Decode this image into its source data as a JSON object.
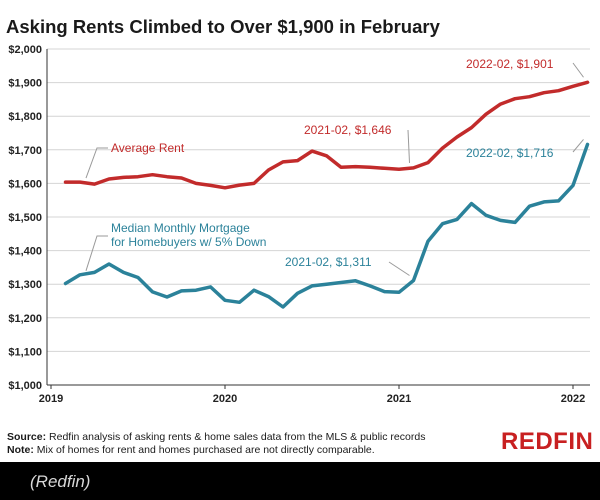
{
  "chart_data": {
    "type": "line",
    "title": "Asking Rents Climbed to Over $1,900 in February",
    "ylim": [
      1000,
      2000
    ],
    "y_ticks": [
      "$1,000",
      "$1,100",
      "$1,200",
      "$1,300",
      "$1,400",
      "$1,500",
      "$1,600",
      "$1,700",
      "$1,800",
      "$1,900",
      "$2,000"
    ],
    "x_ticks": [
      "2019",
      "2020",
      "2021",
      "2022"
    ],
    "x_range": [
      "2019-01",
      "2022-02"
    ],
    "grid": "horizontal",
    "series": [
      {
        "name": "Average Rent",
        "color": "#c22b2b",
        "label_line1": "Average Rent",
        "label_line2": "",
        "x": [
          "2019-02",
          "2019-03",
          "2019-04",
          "2019-05",
          "2019-06",
          "2019-07",
          "2019-08",
          "2019-09",
          "2019-10",
          "2019-11",
          "2019-12",
          "2020-01",
          "2020-02",
          "2020-03",
          "2020-04",
          "2020-05",
          "2020-06",
          "2020-07",
          "2020-08",
          "2020-09",
          "2020-10",
          "2020-11",
          "2020-12",
          "2021-01",
          "2021-02",
          "2021-03",
          "2021-04",
          "2021-05",
          "2021-06",
          "2021-07",
          "2021-08",
          "2021-09",
          "2021-10",
          "2021-11",
          "2021-12",
          "2022-01",
          "2022-02"
        ],
        "values": [
          1604,
          1604,
          1598,
          1613,
          1618,
          1620,
          1626,
          1620,
          1616,
          1600,
          1594,
          1587,
          1595,
          1600,
          1640,
          1664,
          1668,
          1696,
          1682,
          1648,
          1650,
          1648,
          1645,
          1642,
          1646,
          1662,
          1705,
          1738,
          1766,
          1806,
          1836,
          1852,
          1858,
          1870,
          1876,
          1889,
          1901
        ]
      },
      {
        "name": "Median Monthly Mortgage for Homebuyers w/ 5% Down",
        "color": "#2b829a",
        "label_line1": "Median Monthly Mortgage",
        "label_line2": "for Homebuyers w/ 5% Down",
        "x": [
          "2019-02",
          "2019-03",
          "2019-04",
          "2019-05",
          "2019-06",
          "2019-07",
          "2019-08",
          "2019-09",
          "2019-10",
          "2019-11",
          "2019-12",
          "2020-01",
          "2020-02",
          "2020-03",
          "2020-04",
          "2020-05",
          "2020-06",
          "2020-07",
          "2020-08",
          "2020-09",
          "2020-10",
          "2020-11",
          "2020-12",
          "2021-01",
          "2021-02",
          "2021-03",
          "2021-04",
          "2021-05",
          "2021-06",
          "2021-07",
          "2021-08",
          "2021-09",
          "2021-10",
          "2021-11",
          "2021-12",
          "2022-01",
          "2022-02"
        ],
        "values": [
          1302,
          1328,
          1335,
          1360,
          1335,
          1320,
          1277,
          1262,
          1280,
          1282,
          1292,
          1252,
          1246,
          1282,
          1263,
          1232,
          1273,
          1295,
          1300,
          1305,
          1310,
          1295,
          1278,
          1276,
          1311,
          1428,
          1480,
          1493,
          1540,
          1505,
          1490,
          1484,
          1532,
          1545,
          1548,
          1594,
          1716
        ]
      }
    ],
    "annotations": [
      {
        "text": "2022-02, $1,901",
        "series": 0,
        "x": "2022-02",
        "y": 1901
      },
      {
        "text": "2021-02, $1,646",
        "series": 0,
        "x": "2021-02",
        "y": 1646
      },
      {
        "text": "2022-02, $1,716",
        "series": 1,
        "x": "2022-02",
        "y": 1716
      },
      {
        "text": "2021-02, $1,311",
        "series": 1,
        "x": "2021-02",
        "y": 1311
      }
    ]
  },
  "footer": {
    "source_label": "Source:",
    "source_text": "Redfin analysis of asking rents & home sales data from the MLS & public records",
    "note_label": "Note:",
    "note_text": "Mix of homes for rent and homes purchased are not directly comparable."
  },
  "logo": {
    "text": "REDFIN",
    "color": "#c82021"
  },
  "caption": "(Redfin)"
}
